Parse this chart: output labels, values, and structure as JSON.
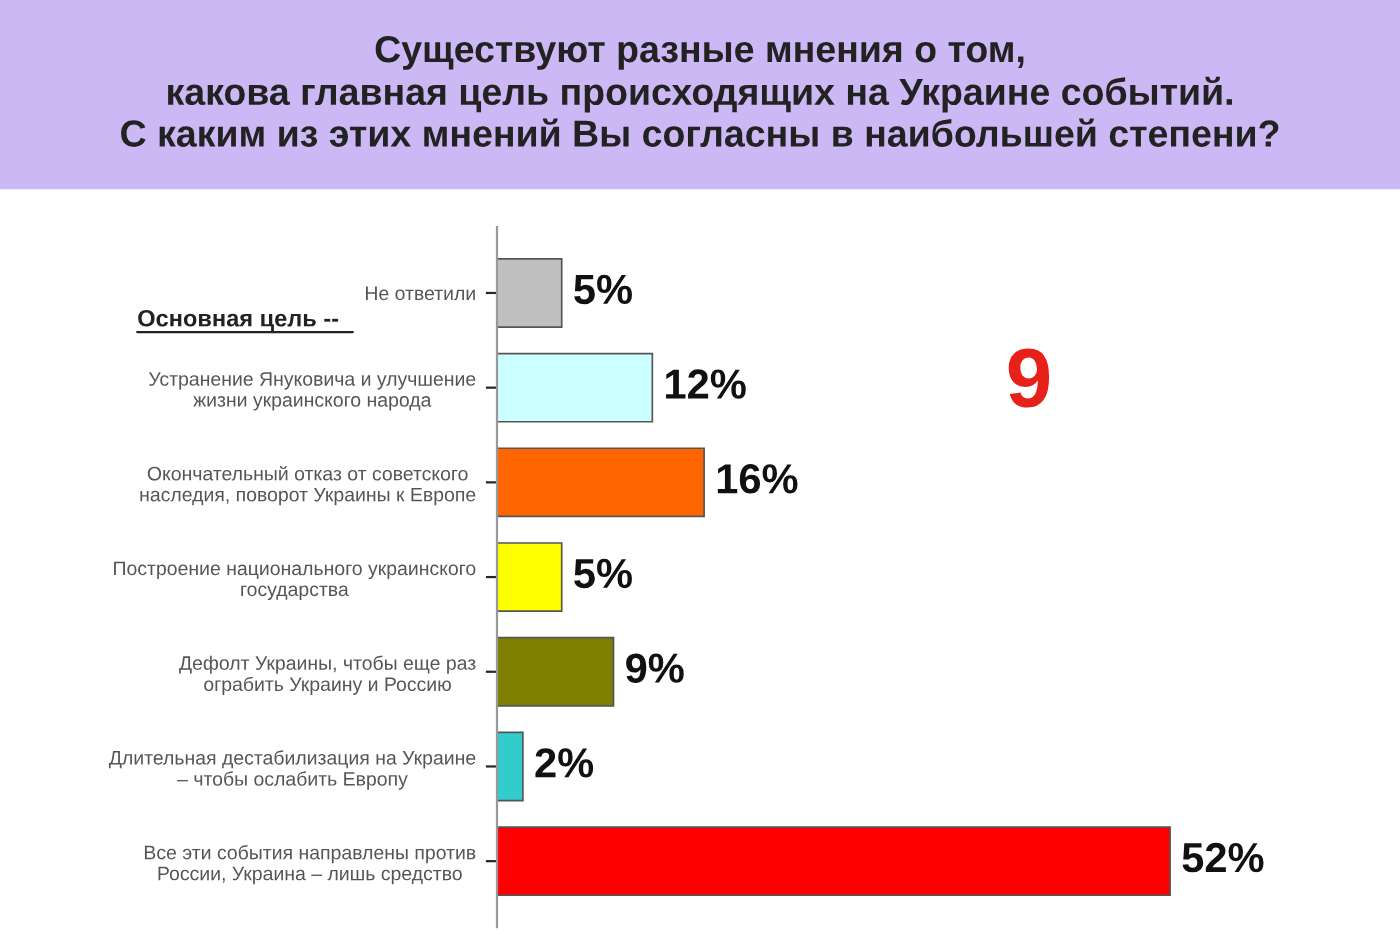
{
  "chart_data": {
    "type": "bar",
    "orientation": "horizontal",
    "title": "Существуют разные мнения о том,\nкакова главная цель происходящих на Украине событий.\nС каким из этих мнений Вы согласны в наибольшей степени?",
    "categories": [
      "Не ответили",
      "Устранение Януковича и улучшение\nжизни украинского народа",
      "Окончательный отказ от советского\nнаследия, поворот Украины к Европе",
      "Построение национального украинского\nгосударства",
      "Дефолт Украины, чтобы еще раз\nограбить Украину и Россию",
      "Длительная дестабилизация на Украине\n– чтобы ослабить Европу",
      "Все эти события направлены против\nРоссии, Украина – лишь средство"
    ],
    "values": [
      5,
      12,
      16,
      5,
      9,
      2,
      52
    ],
    "value_labels": [
      "5%",
      "12%",
      "16%",
      "5%",
      "9%",
      "2%",
      "52%"
    ],
    "colors": [
      "#c0c0c0",
      "#ccffff",
      "#ff6600",
      "#ffff00",
      "#808000",
      "#33cccc",
      "#ff0000"
    ],
    "annotations": [
      "Основная цель --",
      "9"
    ],
    "grid": false,
    "legend": false
  }
}
